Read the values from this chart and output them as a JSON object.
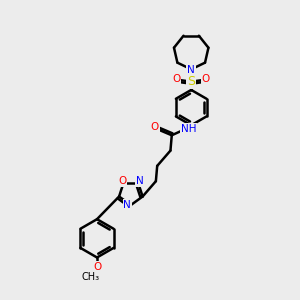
{
  "bg_color": "#ececec",
  "atom_colors": {
    "C": "#000000",
    "N": "#0000ff",
    "O": "#ff0000",
    "S": "#cccc00",
    "H": "#008b8b"
  },
  "bond_color": "#000000",
  "bond_width": 1.8,
  "font_size": 7.5,
  "figsize": [
    3.0,
    3.0
  ],
  "dpi": 100
}
